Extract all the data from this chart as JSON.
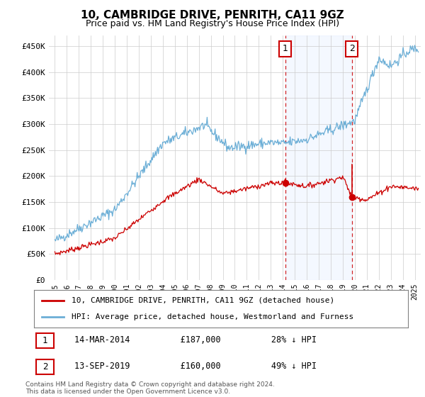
{
  "title": "10, CAMBRIDGE DRIVE, PENRITH, CA11 9GZ",
  "subtitle": "Price paid vs. HM Land Registry's House Price Index (HPI)",
  "footer": "Contains HM Land Registry data © Crown copyright and database right 2024.\nThis data is licensed under the Open Government Licence v3.0.",
  "legend_line1": "10, CAMBRIDGE DRIVE, PENRITH, CA11 9GZ (detached house)",
  "legend_line2": "HPI: Average price, detached house, Westmorland and Furness",
  "ann1_label": "1",
  "ann1_date": "14-MAR-2014",
  "ann1_price": "£187,000",
  "ann1_hpi": "28% ↓ HPI",
  "ann1_x": 2014.2,
  "ann1_y": 187000,
  "ann2_label": "2",
  "ann2_date": "13-SEP-2019",
  "ann2_price": "£160,000",
  "ann2_hpi": "49% ↓ HPI",
  "ann2_x": 2019.75,
  "ann2_y": 160000,
  "hpi_color": "#6baed6",
  "price_color": "#cc0000",
  "ylim": [
    0,
    470000
  ],
  "yticks": [
    0,
    50000,
    100000,
    150000,
    200000,
    250000,
    300000,
    350000,
    400000,
    450000
  ],
  "ytick_labels": [
    "£0",
    "£50K",
    "£100K",
    "£150K",
    "£200K",
    "£250K",
    "£300K",
    "£350K",
    "£400K",
    "£450K"
  ],
  "xlim": [
    1994.5,
    2025.5
  ],
  "xticks": [
    1995,
    1996,
    1997,
    1998,
    1999,
    2000,
    2001,
    2002,
    2003,
    2004,
    2005,
    2006,
    2007,
    2008,
    2009,
    2010,
    2011,
    2012,
    2013,
    2014,
    2015,
    2016,
    2017,
    2018,
    2019,
    2020,
    2021,
    2022,
    2023,
    2024,
    2025
  ],
  "bg_color": "white",
  "grid_color": "#cccccc"
}
